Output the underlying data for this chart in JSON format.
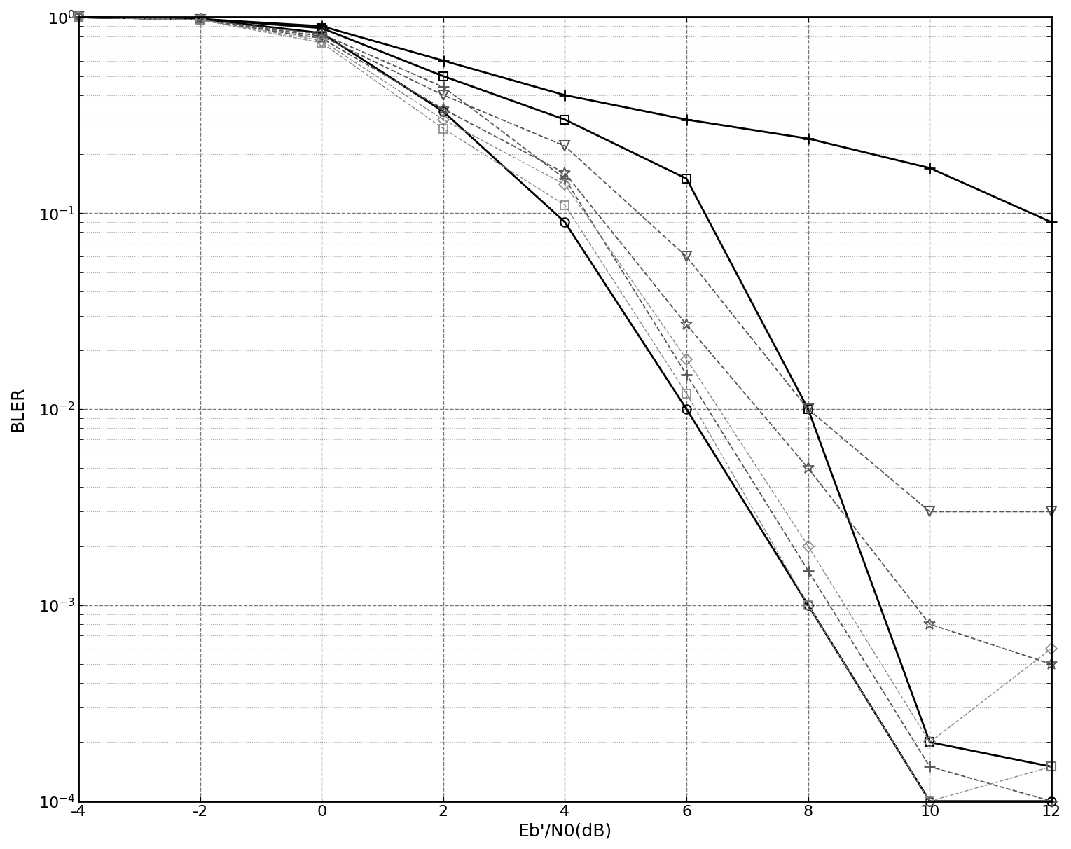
{
  "xlabel": "Eb'/N0(dB)",
  "ylabel": "BLER",
  "xlim": [
    -4,
    12
  ],
  "ylim": [
    0.0001,
    1.0
  ],
  "xticks": [
    -4,
    -2,
    0,
    2,
    4,
    6,
    8,
    10,
    12
  ],
  "xticklabels": [
    "-4",
    "-2",
    "0",
    "2",
    "4",
    "6",
    "8",
    "10",
    "12"
  ],
  "background_color": "#ffffff",
  "curves": [
    {
      "name": "solid_plus_black",
      "x": [
        -4,
        -2,
        0,
        2,
        4,
        6,
        8,
        10,
        12
      ],
      "y": [
        1.0,
        0.98,
        0.9,
        0.6,
        0.4,
        0.3,
        0.24,
        0.17,
        0.09
      ],
      "color": "#000000",
      "linestyle": "-",
      "marker": "+",
      "markersize": 12,
      "linewidth": 2.0,
      "markeredgewidth": 2.0
    },
    {
      "name": "solid_square_black",
      "x": [
        -4,
        -2,
        0,
        2,
        4,
        6,
        8,
        10,
        12
      ],
      "y": [
        1.0,
        0.98,
        0.88,
        0.5,
        0.3,
        0.15,
        0.01,
        0.0002,
        0.00015
      ],
      "color": "#000000",
      "linestyle": "-",
      "marker": "s",
      "markersize": 8,
      "linewidth": 2.0,
      "markeredgewidth": 1.5
    },
    {
      "name": "solid_circle_black",
      "x": [
        -4,
        -2,
        0,
        2,
        4,
        6,
        8,
        10,
        12
      ],
      "y": [
        1.0,
        0.98,
        0.83,
        0.33,
        0.09,
        0.01,
        0.001,
        0.0001,
        0.0001
      ],
      "color": "#000000",
      "linestyle": "-",
      "marker": "o",
      "markersize": 9,
      "linewidth": 2.0,
      "markeredgewidth": 1.5
    },
    {
      "name": "dash_plus_gray",
      "x": [
        -4,
        -2,
        0,
        2,
        4,
        6,
        8,
        10,
        12
      ],
      "y": [
        1.0,
        0.97,
        0.82,
        0.44,
        0.15,
        0.015,
        0.0015,
        0.00015,
        0.0001
      ],
      "color": "#555555",
      "linestyle": "--",
      "marker": "+",
      "markersize": 12,
      "linewidth": 1.3,
      "markeredgewidth": 2.0
    },
    {
      "name": "dash_triangle_down_gray",
      "x": [
        -4,
        -2,
        0,
        2,
        4,
        6,
        8,
        10,
        12
      ],
      "y": [
        1.0,
        0.97,
        0.8,
        0.4,
        0.22,
        0.06,
        0.01,
        0.003,
        0.003
      ],
      "color": "#555555",
      "linestyle": "--",
      "marker": "v",
      "markersize": 10,
      "linewidth": 1.3,
      "markeredgewidth": 1.5
    },
    {
      "name": "dash_star_gray",
      "x": [
        -4,
        -2,
        0,
        2,
        4,
        6,
        8,
        10,
        12
      ],
      "y": [
        1.0,
        0.97,
        0.78,
        0.34,
        0.16,
        0.027,
        0.005,
        0.0008,
        0.0005
      ],
      "color": "#555555",
      "linestyle": "--",
      "marker": "*",
      "markersize": 12,
      "linewidth": 1.3,
      "markeredgewidth": 1.2
    },
    {
      "name": "dash_diamond_lightgray",
      "x": [
        -4,
        -2,
        0,
        2,
        4,
        6,
        8,
        10,
        12
      ],
      "y": [
        1.0,
        0.97,
        0.76,
        0.3,
        0.14,
        0.018,
        0.002,
        0.0002,
        0.0006
      ],
      "color": "#888888",
      "linestyle": "--",
      "marker": "D",
      "markersize": 8,
      "linewidth": 1.0,
      "markeredgewidth": 1.2
    },
    {
      "name": "dash_square_lightgray",
      "x": [
        -4,
        -2,
        0,
        2,
        4,
        6,
        8,
        10,
        12
      ],
      "y": [
        1.0,
        0.97,
        0.74,
        0.27,
        0.11,
        0.012,
        0.001,
        0.0001,
        0.00015
      ],
      "color": "#888888",
      "linestyle": "--",
      "marker": "s",
      "markersize": 8,
      "linewidth": 1.0,
      "markeredgewidth": 1.2
    }
  ]
}
